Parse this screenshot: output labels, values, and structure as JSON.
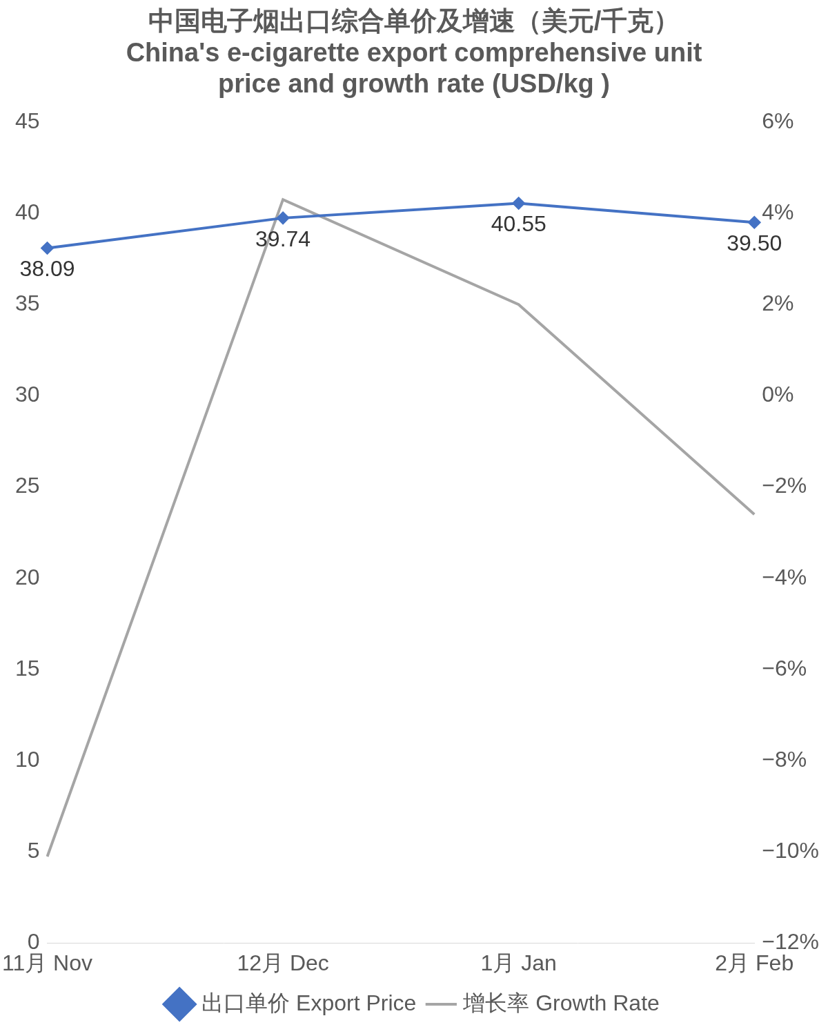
{
  "chart_data": {
    "type": "line",
    "title": [
      "中国电子烟出口综合单价及增速（美元/千克）",
      "China's e-cigarette export comprehensive unit",
      "price and growth rate (USD/kg )"
    ],
    "categories": [
      "11月 Nov",
      "12月 Dec",
      "1月 Jan",
      "2月 Feb"
    ],
    "series": [
      {
        "name": "出口单价 Export Price",
        "color": "#4472c4",
        "values": [
          38.09,
          39.74,
          40.55,
          39.5
        ],
        "value_labels": [
          "38.09",
          "39.74",
          "40.55",
          "39.50"
        ],
        "data_labels": true,
        "marker": "diamond",
        "line_style": "solid"
      },
      {
        "name": "增长率 Growth Rate",
        "color": "#a5a5a5",
        "values": [
          -10.1,
          4.3,
          2.0,
          -2.6
        ],
        "axis": "y2",
        "marker": "none",
        "line_style": "solid"
      }
    ],
    "ylim": [
      0,
      45
    ],
    "yticks": [
      0,
      5,
      10,
      15,
      20,
      25,
      30,
      35,
      40,
      45
    ],
    "y2lim": [
      -12,
      6
    ],
    "y2ticks": [
      {
        "value": -12,
        "label": "−12%"
      },
      {
        "value": -10,
        "label": "−10%"
      },
      {
        "value": -8,
        "label": "−8%"
      },
      {
        "value": -6,
        "label": "−6%"
      },
      {
        "value": -4,
        "label": "−4%"
      },
      {
        "value": -2,
        "label": "−2%"
      },
      {
        "value": 0,
        "label": "0%"
      },
      {
        "value": 2,
        "label": "2%"
      },
      {
        "value": 4,
        "label": "4%"
      },
      {
        "value": 6,
        "label": "6%"
      }
    ],
    "grid": false,
    "legend": "bottom"
  }
}
